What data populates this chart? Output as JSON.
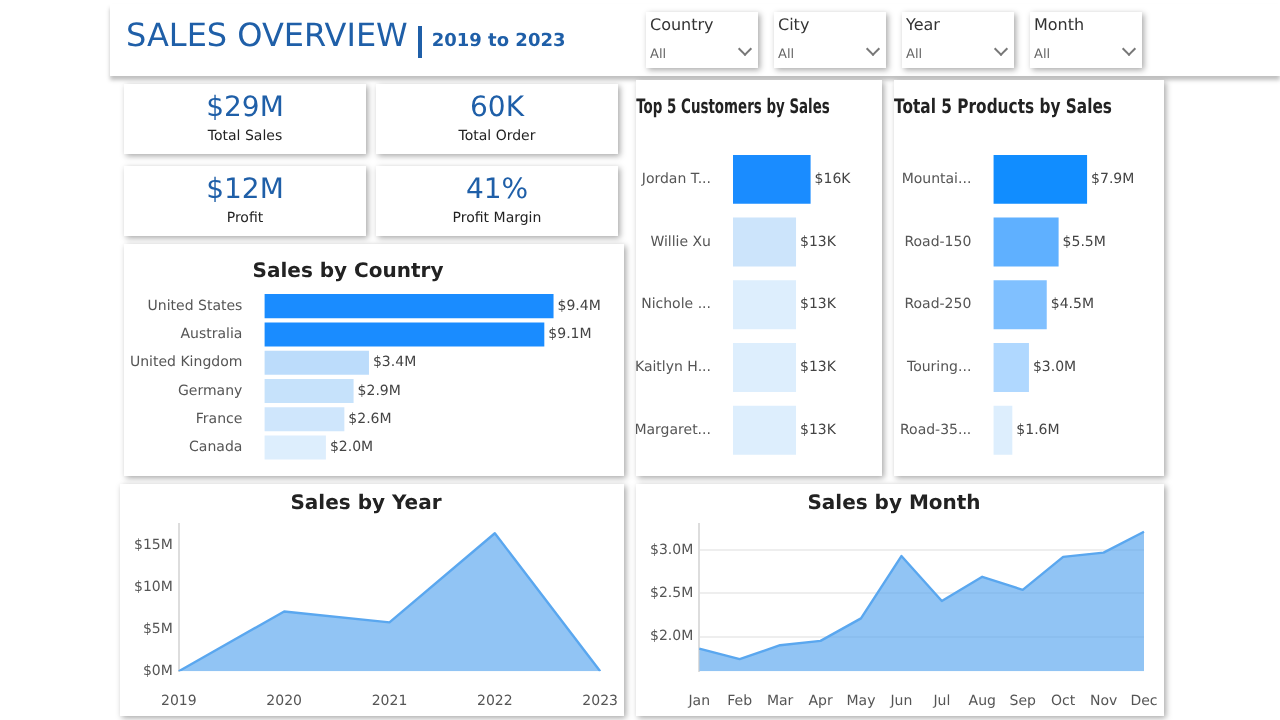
{
  "chart_data": [
    {
      "type": "other",
      "title": "SALES OVERVIEW",
      "subtitle": "2019 to 2023",
      "annotations": [
        "Country",
        "All",
        "City",
        "All",
        "Year",
        "All",
        "Month",
        "All"
      ]
    },
    {
      "type": "other",
      "annotations": [
        "$29M",
        "Total Sales",
        "60K",
        "Total Order",
        "$12M",
        "Profit",
        "41%",
        "Profit Margin"
      ]
    },
    {
      "type": "bar",
      "orientation": "horizontal",
      "title": "Sales by Country",
      "categories": [
        "United States",
        "Australia",
        "United Kingdom",
        "Germany",
        "France",
        "Canada"
      ],
      "values": [
        9.4,
        9.1,
        3.4,
        2.9,
        2.6,
        2.0
      ],
      "value_labels": [
        "$9.4M",
        "$9.1M",
        "$3.4M",
        "$2.9M",
        "$2.6M",
        "$2.0M"
      ],
      "colors": [
        "#1a8cff",
        "#1a8cff",
        "#bcdcfb",
        "#c6e2fb",
        "#cfe6fc",
        "#ddeefd"
      ],
      "tick_labels": "y"
    },
    {
      "type": "bar",
      "orientation": "horizontal",
      "title": "Top 5 Customers by Sales",
      "categories": [
        "Jordan T...",
        "Willie Xu",
        "Nichole ...",
        "Kaitlyn H...",
        "Margaret..."
      ],
      "values": [
        16,
        13,
        13,
        13,
        13
      ],
      "value_labels": [
        "$16K",
        "$13K",
        "$13K",
        "$13K",
        "$13K"
      ],
      "colors": [
        "#1a8cff",
        "#cce4fb",
        "#ddeefd",
        "#ddeefd",
        "#ddeefd"
      ],
      "tick_labels": "y"
    },
    {
      "type": "bar",
      "orientation": "horizontal",
      "title": "Total 5 Products by Sales",
      "categories": [
        "Mountai...",
        "Road-150",
        "Road-250",
        "Touring...",
        "Road-35..."
      ],
      "values": [
        7.9,
        5.5,
        4.5,
        3.0,
        1.6
      ],
      "value_labels": [
        "$7.9M",
        "$5.5M",
        "$4.5M",
        "$3.0M",
        "$1.6M"
      ],
      "colors": [
        "#118dff",
        "#5fb0ff",
        "#80c0ff",
        "#b0d8ff",
        "#ddeefd"
      ],
      "tick_labels": "y"
    },
    {
      "type": "area",
      "title": "Sales by Year",
      "categories": [
        "2019",
        "2020",
        "2021",
        "2022",
        "2023"
      ],
      "values": [
        0,
        7.1,
        5.8,
        16.4,
        0
      ],
      "color": "#5aa7ef",
      "ylim": [
        0,
        17.5
      ],
      "yticks": [
        {
          "value": 0,
          "label": "$0M"
        },
        {
          "value": 5,
          "label": "$5M"
        },
        {
          "value": 10,
          "label": "$10M"
        },
        {
          "value": 15,
          "label": "$15M"
        }
      ],
      "grid": false
    },
    {
      "type": "area",
      "title": "Sales by Month",
      "categories": [
        "Jan",
        "Feb",
        "Mar",
        "Apr",
        "May",
        "Jun",
        "Jul",
        "Aug",
        "Sep",
        "Oct",
        "Nov",
        "Dec"
      ],
      "values": [
        1.86,
        1.74,
        1.9,
        1.95,
        2.21,
        2.93,
        2.41,
        2.69,
        2.54,
        2.92,
        2.97,
        3.21
      ],
      "color": "#5aa7ef",
      "ylim": [
        1.6,
        3.3
      ],
      "yticks": [
        {
          "value": 2,
          "label": "$2.0M"
        },
        {
          "value": 2.5,
          "label": "$2.5M"
        },
        {
          "value": 3,
          "label": "$3.0M"
        }
      ],
      "grid": "y"
    }
  ]
}
